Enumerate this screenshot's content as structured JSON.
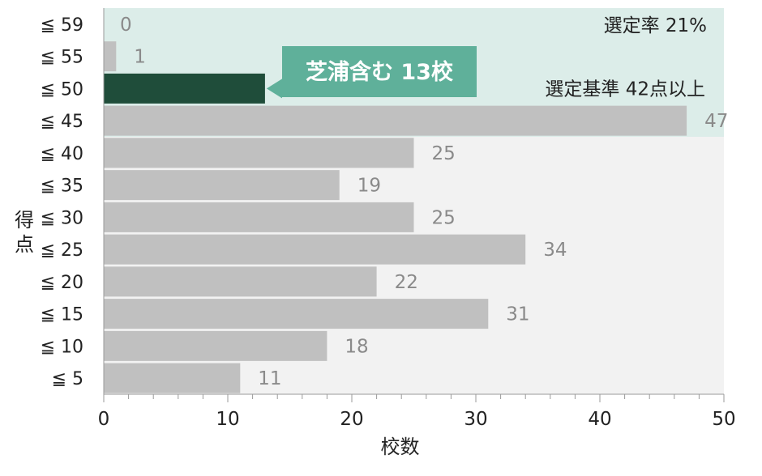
{
  "chart_data": {
    "type": "bar",
    "orientation": "horizontal",
    "categories": [
      "≦ 59",
      "≦ 55",
      "≦ 50",
      "≦ 45",
      "≦ 40",
      "≦ 35",
      "≦ 30",
      "≦ 25",
      "≦ 20",
      "≦ 15",
      "≦ 10",
      "≦ 5"
    ],
    "values": [
      0,
      1,
      13,
      47,
      25,
      19,
      25,
      34,
      22,
      31,
      18,
      11
    ],
    "value_labels": [
      "0",
      "1",
      "",
      "47",
      "25",
      "19",
      "25",
      "34",
      "22",
      "31",
      "18",
      "11"
    ],
    "highlight_index": 2,
    "xlabel": "校数",
    "ylabel": "得点",
    "xlim": [
      0,
      50
    ],
    "xticks": [
      0,
      10,
      20,
      30,
      40,
      50
    ],
    "grid": false,
    "callout": "芝浦含む 13校",
    "selection_band_categories": [
      "≦ 59",
      "≦ 55",
      "≦ 50",
      "≦ 45"
    ],
    "annotations": {
      "selection_rate": "選定率 21%",
      "selection_criteria": "選定基準 42点以上"
    },
    "colors": {
      "bar": "#c0c0c0",
      "highlight_bar": "#1f4d3a",
      "selection_band": "#dcede9",
      "callout": "#5fb09a",
      "plot_background": "#f2f2f2"
    }
  }
}
